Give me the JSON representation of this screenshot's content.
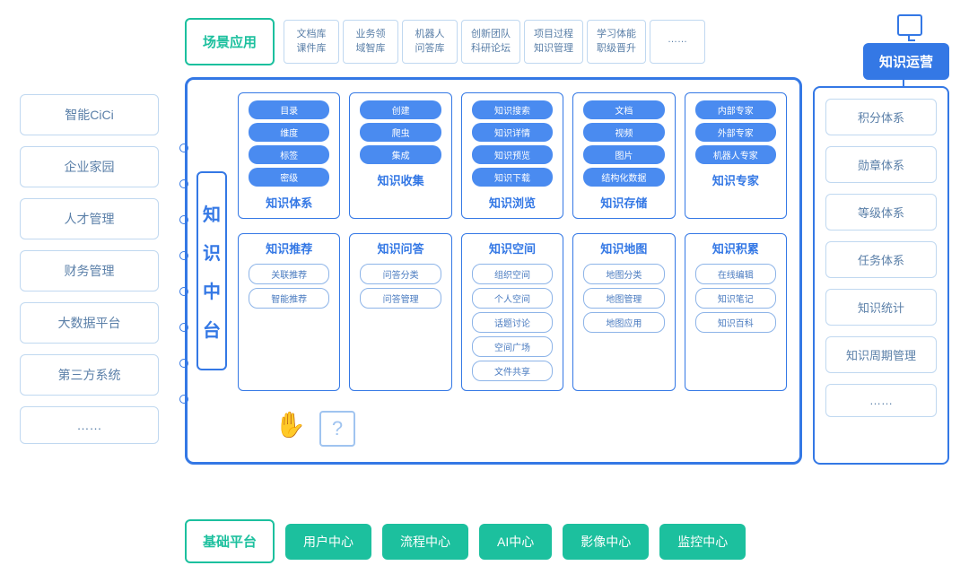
{
  "colors": {
    "green": "#1cc09e",
    "blue": "#3478e5",
    "lightblue_border": "#c0d8f0",
    "tag_bg": "#4a8bf0",
    "text_muted": "#5a7fa8"
  },
  "top": {
    "scene_label": "场景应用",
    "items": [
      "文档库\n课件库",
      "业务领\n域智库",
      "机器人\n问答库",
      "创新团队\n科研论坛",
      "项目过程\n知识管理",
      "学习体能\n职级晋升",
      "……"
    ]
  },
  "ops_label": "知识运营",
  "left_sidebar": [
    "智能CiCi",
    "企业家园",
    "人才管理",
    "财务管理",
    "大数据平台",
    "第三方系统",
    "……"
  ],
  "main_title": "知识中台",
  "modules_row1": [
    {
      "title": "知识体系",
      "items": [
        "目录",
        "维度",
        "标签",
        "密级"
      ]
    },
    {
      "title": "知识收集",
      "items": [
        "创建",
        "爬虫",
        "集成"
      ]
    },
    {
      "title": "知识浏览",
      "items": [
        "知识搜索",
        "知识详情",
        "知识预览",
        "知识下载"
      ]
    },
    {
      "title": "知识存储",
      "items": [
        "文档",
        "视频",
        "图片",
        "结构化数据"
      ]
    },
    {
      "title": "知识专家",
      "items": [
        "内部专家",
        "外部专家",
        "机器人专家"
      ]
    }
  ],
  "modules_row2": [
    {
      "title": "知识推荐",
      "items": [
        "关联推荐",
        "智能推荐"
      ]
    },
    {
      "title": "知识问答",
      "items": [
        "问答分类",
        "问答管理"
      ]
    },
    {
      "title": "知识空间",
      "items": [
        "组织空间",
        "个人空间",
        "话题讨论",
        "空间广场",
        "文件共享"
      ]
    },
    {
      "title": "知识地图",
      "items": [
        "地图分类",
        "地图管理",
        "地图应用"
      ]
    },
    {
      "title": "知识积累",
      "items": [
        "在线编辑",
        "知识笔记",
        "知识百科"
      ]
    }
  ],
  "right_sidebar": [
    "积分体系",
    "勋章体系",
    "等级体系",
    "任务体系",
    "知识统计",
    "知识周期管理",
    "……"
  ],
  "bottom": {
    "base_label": "基础平台",
    "items": [
      "用户中心",
      "流程中心",
      "AI中心",
      "影像中心",
      "监控中心"
    ]
  }
}
